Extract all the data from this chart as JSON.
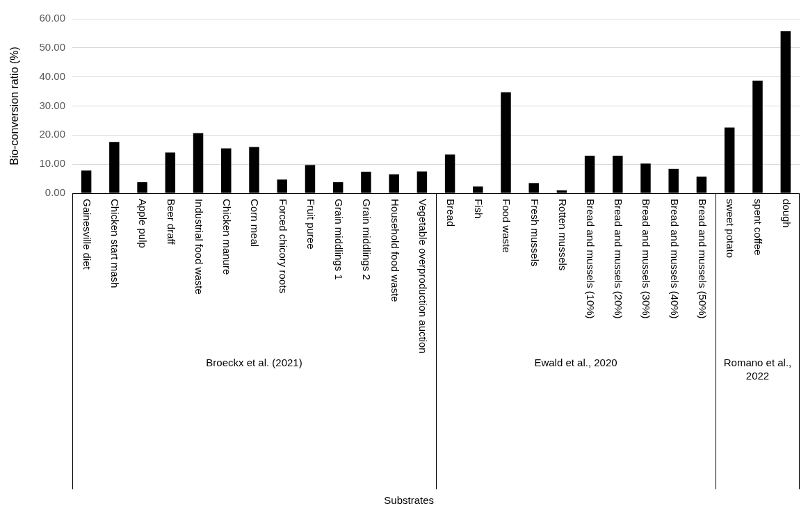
{
  "chart_data": [
    {
      "type": "bar",
      "xlabel": "Broeckx et al. (2021)",
      "ylabel": "Bio-conversion ratio (%)",
      "categories": [
        "Gainesville diet",
        "Chicken start mash",
        "Apple pulp",
        "Beer draff",
        "Industrial food waste",
        "Chicken manure",
        "Corn meal",
        "Forced chicory roots",
        "Fruit puree",
        "Grain middlings 1",
        "Grain middlings 2",
        "Household food waste",
        "Vegetable overproduction auction"
      ],
      "values": [
        7.8,
        17.6,
        3.8,
        14.0,
        20.7,
        15.4,
        15.9,
        4.7,
        9.7,
        3.8,
        7.4,
        6.5,
        7.5
      ],
      "color": "#000000",
      "ylim": [
        0,
        60
      ],
      "yticks": [
        {
          "value": 0,
          "label": "0.00"
        },
        {
          "value": 10,
          "label": "10.00"
        },
        {
          "value": 20,
          "label": "20.00"
        },
        {
          "value": 30,
          "label": "30.00"
        },
        {
          "value": 40,
          "label": "40.00"
        },
        {
          "value": 50,
          "label": "50.00"
        },
        {
          "value": 60,
          "label": "60.00"
        }
      ],
      "grid": "y",
      "annotations": [
        "Substrates"
      ]
    },
    {
      "type": "bar",
      "xlabel": "Ewald et al., 2020",
      "categories": [
        "Bread",
        "Fish",
        "Food waste",
        "Fresh mussels",
        "Rotten mussels",
        "Bread and mussels (10%)",
        "Bread and mussels (20%)",
        "Bread and mussels (30%)",
        "Bread and mussels (40%)",
        "Bread and mussels (50%)"
      ],
      "values": [
        13.3,
        2.3,
        34.7,
        3.5,
        1.0,
        12.9,
        12.9,
        10.2,
        8.4,
        5.7
      ],
      "color": "#000000",
      "ylim": [
        0,
        60
      ],
      "yticks": [
        0,
        10,
        20,
        30,
        40,
        50,
        60
      ],
      "grid": "y",
      "tick_labels": "x"
    },
    {
      "type": "bar",
      "xlabel": "Romano et al., 2022",
      "categories": [
        "sweet potato",
        "spent coffee",
        "dough"
      ],
      "values": [
        22.6,
        38.7,
        55.7
      ],
      "color": "#000000",
      "ylim": [
        0,
        60
      ],
      "yticks": [
        0,
        10,
        20,
        30,
        40,
        50,
        60
      ],
      "grid": "y",
      "tick_labels": "x"
    }
  ]
}
